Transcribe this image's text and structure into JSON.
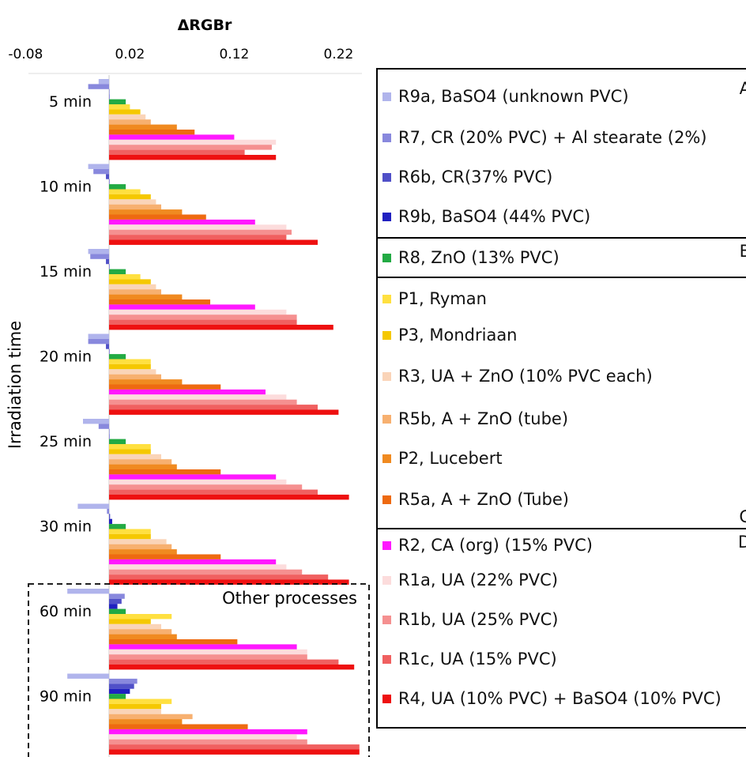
{
  "chart_data": {
    "type": "bar",
    "orientation": "horizontal",
    "xlabel": "ΔRGBr",
    "ylabel": "Irradiation time",
    "xlim": [
      -0.08,
      0.25
    ],
    "xticks": [
      "-0.08",
      "0.02",
      "0.12",
      "0.22"
    ],
    "xtick_values": [
      -0.08,
      0.02,
      0.12,
      0.22
    ],
    "categories": [
      "5 min",
      "10 min",
      "15 min",
      "20 min",
      "25 min",
      "30 min",
      "60 min",
      "90 min"
    ],
    "annotation": "Other processes",
    "series": [
      {
        "name": "R9a, BaSO4 (unknown PVC)",
        "color": "#b0b4ec",
        "values": [
          -0.01,
          -0.02,
          -0.02,
          -0.02,
          -0.025,
          -0.03,
          -0.04,
          -0.04
        ]
      },
      {
        "name": "R7, CR (20% PVC) + Al stearate (2%)",
        "color": "#8888dd",
        "values": [
          -0.02,
          -0.015,
          -0.018,
          -0.02,
          -0.01,
          -0.002,
          0.015,
          0.027
        ]
      },
      {
        "name": "R6b, CR(37% PVC)",
        "color": "#5050c8",
        "values": [
          0.0,
          -0.003,
          -0.003,
          -0.003,
          0.0,
          0.001,
          0.012,
          0.024
        ]
      },
      {
        "name": "R9b, BaSO4 (44% PVC)",
        "color": "#2020c0",
        "values": [
          0.0,
          0.0,
          0.0,
          0.0,
          0.0,
          0.003,
          0.008,
          0.02
        ]
      },
      {
        "name": "R8, ZnO (13% PVC)",
        "color": "#22aa44",
        "values": [
          0.016,
          0.016,
          0.016,
          0.016,
          0.016,
          0.016,
          0.016,
          0.016
        ]
      },
      {
        "name": "P1, Ryman",
        "color": "#ffe040",
        "values": [
          0.02,
          0.03,
          0.03,
          0.04,
          0.04,
          0.04,
          0.06,
          0.06
        ]
      },
      {
        "name": "P3, Mondriaan",
        "color": "#f5c800",
        "values": [
          0.03,
          0.04,
          0.04,
          0.04,
          0.04,
          0.04,
          0.04,
          0.05
        ]
      },
      {
        "name": "R3, UA + ZnO (10% PVC each)",
        "color": "#fad4b8",
        "values": [
          0.035,
          0.045,
          0.045,
          0.045,
          0.05,
          0.055,
          0.05,
          0.05
        ]
      },
      {
        "name": "R5b, A + ZnO (tube)",
        "color": "#f7b070",
        "values": [
          0.04,
          0.05,
          0.05,
          0.05,
          0.06,
          0.06,
          0.06,
          0.08
        ]
      },
      {
        "name": "P2, Lucebert",
        "color": "#f08a20",
        "values": [
          0.065,
          0.07,
          0.07,
          0.07,
          0.065,
          0.065,
          0.065,
          0.07
        ]
      },
      {
        "name": "R5a, A + ZnO (Tube)",
        "color": "#ee6a10",
        "values": [
          0.082,
          0.093,
          0.097,
          0.107,
          0.107,
          0.107,
          0.123,
          0.133
        ]
      },
      {
        "name": "R2, CA (org) (15% PVC)",
        "color": "#ff18ff",
        "values": [
          0.12,
          0.14,
          0.14,
          0.15,
          0.16,
          0.16,
          0.18,
          0.19
        ]
      },
      {
        "name": "R1a, UA (22% PVC)",
        "color": "#fcdcdc",
        "values": [
          0.16,
          0.17,
          0.17,
          0.17,
          0.17,
          0.17,
          0.19,
          0.18
        ]
      },
      {
        "name": "R1b, UA (25% PVC)",
        "color": "#f59090",
        "values": [
          0.156,
          0.175,
          0.18,
          0.18,
          0.185,
          0.185,
          0.19,
          0.19
        ]
      },
      {
        "name": "R1c, UA (15% PVC)",
        "color": "#f06060",
        "values": [
          0.13,
          0.17,
          0.18,
          0.2,
          0.2,
          0.21,
          0.22,
          0.24
        ]
      },
      {
        "name": "R4, UA (10% PVC) + BaSO4 (10% PVC)",
        "color": "#ee1010",
        "values": [
          0.16,
          0.2,
          0.215,
          0.22,
          0.23,
          0.23,
          0.235,
          0.24
        ]
      }
    ],
    "legend_groups": [
      "A",
      "B",
      "C",
      "D"
    ]
  }
}
